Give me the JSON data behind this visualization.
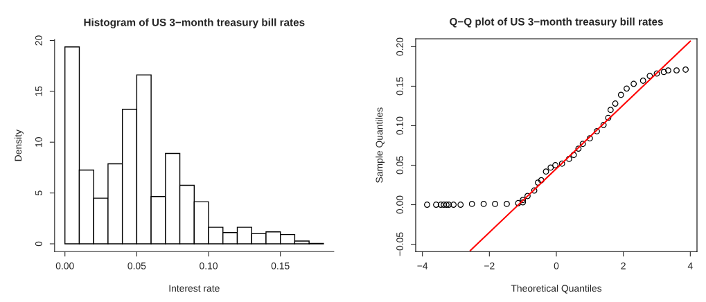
{
  "chart_data": [
    {
      "type": "histogram",
      "title": "Histogram of US 3−month treasury bill rates",
      "xlabel": "Interest rate",
      "ylabel": "Density",
      "color": "#ffffff",
      "bins": [
        0,
        0.01,
        0.02,
        0.03,
        0.04,
        0.05,
        0.06,
        0.07,
        0.08,
        0.09,
        0.1,
        0.11,
        0.12,
        0.13,
        0.14,
        0.15,
        0.16,
        0.17,
        0.18
      ],
      "values": [
        19.37,
        7.26,
        4.49,
        7.87,
        13.24,
        16.62,
        4.65,
        8.89,
        5.76,
        4.13,
        1.63,
        1.11,
        1.63,
        1.0,
        1.18,
        0.91,
        0.27,
        0.03
      ],
      "xlim": [
        -0.0072,
        0.1872
      ],
      "ylim": [
        -0.77,
        20.1
      ],
      "xticks": [
        {
          "value": 0,
          "label": "0.00"
        },
        {
          "value": 0.05,
          "label": "0.05"
        },
        {
          "value": 0.1,
          "label": "0.10"
        },
        {
          "value": 0.15,
          "label": "0.15"
        }
      ],
      "yticks": [
        0,
        5,
        10,
        15,
        20
      ],
      "grid": false
    },
    {
      "type": "scatter",
      "title": "Q−Q plot of US 3−month treasury bill rates",
      "xlabel": "Theoretical Quantiles",
      "ylabel": "Sample Quantiles",
      "series": [
        {
          "type": "scatter",
          "color": "#000000",
          "marker": "circle",
          "x": [
            -3.86,
            -3.59,
            -3.45,
            -3.36,
            -3.28,
            -3.21,
            -3.07,
            -2.86,
            -2.52,
            -2.17,
            -1.83,
            -1.48,
            -1.14,
            -1.0,
            -1.0,
            -0.86,
            -0.66,
            -0.55,
            -0.45,
            -0.31,
            -0.17,
            -0.03,
            0.17,
            0.38,
            0.52,
            0.66,
            0.79,
            1.0,
            1.21,
            1.41,
            1.55,
            1.62,
            1.76,
            1.93,
            2.1,
            2.31,
            2.59,
            2.79,
            3.0,
            3.21,
            3.34,
            3.59,
            3.86
          ],
          "values": [
            0,
            0,
            0,
            0,
            0,
            0,
            0,
            0,
            0.001,
            0.001,
            0.001,
            0.001,
            0.002,
            0.003,
            0.006,
            0.011,
            0.018,
            0.028,
            0.031,
            0.042,
            0.047,
            0.05,
            0.052,
            0.058,
            0.063,
            0.071,
            0.077,
            0.084,
            0.093,
            0.101,
            0.11,
            0.12,
            0.128,
            0.139,
            0.147,
            0.153,
            0.157,
            0.163,
            0.166,
            0.168,
            0.17,
            0.17,
            0.171
          ]
        },
        {
          "type": "line",
          "color": "#ff0000",
          "x": [
            -2.57,
            4.0
          ],
          "values": [
            -0.058,
            0.207
          ]
        }
      ],
      "xlim": [
        -4.2,
        4.2
      ],
      "ylim": [
        -0.0594,
        0.21
      ],
      "xticks": [
        {
          "value": -4,
          "label": "−4"
        },
        {
          "value": -2,
          "label": "−2"
        },
        0,
        2,
        4
      ],
      "yticks": [
        {
          "value": -0.05,
          "label": "−0.05"
        },
        {
          "value": 0,
          "label": "0.00"
        },
        {
          "value": 0.05,
          "label": "0.05"
        },
        {
          "value": 0.1,
          "label": "0.10"
        },
        {
          "value": 0.15,
          "label": "0.15"
        },
        {
          "value": 0.2,
          "label": "0.20"
        }
      ],
      "grid": false
    }
  ]
}
